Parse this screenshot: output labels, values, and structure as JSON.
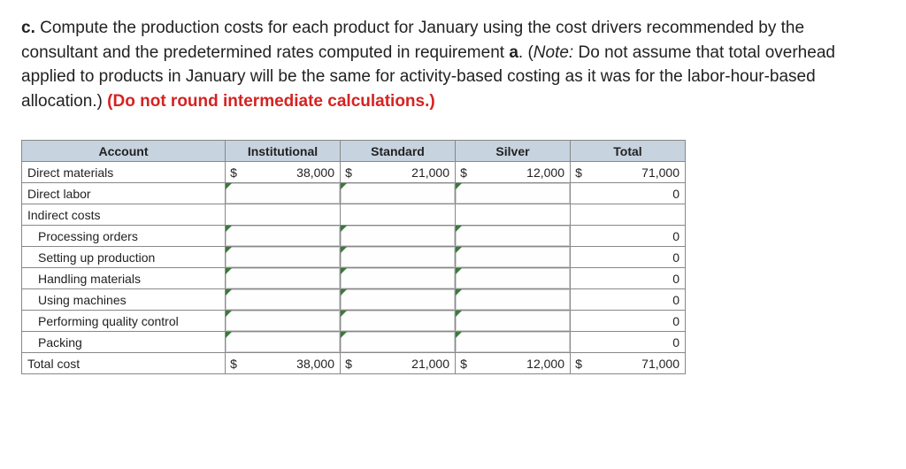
{
  "question": {
    "prefix": "c.",
    "body_1": " Compute the production costs for each product for January using the cost drivers recommended by the consultant and the predetermined rates computed in requirement ",
    "ref": "a",
    "body_2": ". (",
    "note_label": "Note:",
    "note_body": " Do not assume that total overhead applied to products in January will be the same for activity-based costing as it was for the labor-hour-based allocation.) ",
    "red": "(Do not round intermediate calculations.)"
  },
  "table": {
    "headers": [
      "Account",
      "Institutional",
      "Standard",
      "Silver",
      "Total"
    ],
    "rows": [
      {
        "label": "Direct materials",
        "indent": false,
        "editable": false,
        "dollar": true,
        "vals": [
          "38,000",
          "21,000",
          "12,000",
          "71,000"
        ]
      },
      {
        "label": "Direct labor",
        "indent": false,
        "editable": true,
        "dollar": false,
        "vals": [
          "",
          "",
          "",
          "0"
        ]
      },
      {
        "label": "Indirect costs",
        "indent": false,
        "editable": false,
        "dollar": false,
        "vals": [
          "",
          "",
          "",
          ""
        ]
      },
      {
        "label": "Processing orders",
        "indent": true,
        "editable": true,
        "dollar": false,
        "vals": [
          "",
          "",
          "",
          "0"
        ]
      },
      {
        "label": "Setting up production",
        "indent": true,
        "editable": true,
        "dollar": false,
        "vals": [
          "",
          "",
          "",
          "0"
        ]
      },
      {
        "label": "Handling materials",
        "indent": true,
        "editable": true,
        "dollar": false,
        "vals": [
          "",
          "",
          "",
          "0"
        ]
      },
      {
        "label": "Using machines",
        "indent": true,
        "editable": true,
        "dollar": false,
        "vals": [
          "",
          "",
          "",
          "0"
        ]
      },
      {
        "label": "Performing quality control",
        "indent": true,
        "editable": true,
        "dollar": false,
        "vals": [
          "",
          "",
          "",
          "0"
        ]
      },
      {
        "label": "Packing",
        "indent": true,
        "editable": true,
        "dollar": false,
        "vals": [
          "",
          "",
          "",
          "0"
        ]
      },
      {
        "label": "Total cost",
        "indent": false,
        "editable": false,
        "dollar": true,
        "vals": [
          "38,000",
          "21,000",
          "12,000",
          "71,000"
        ]
      }
    ]
  },
  "colors": {
    "header_bg": "#c7d3df",
    "border": "#888888",
    "text": "#222222",
    "red": "#d62222",
    "input_marker": "#3a7a3a"
  }
}
